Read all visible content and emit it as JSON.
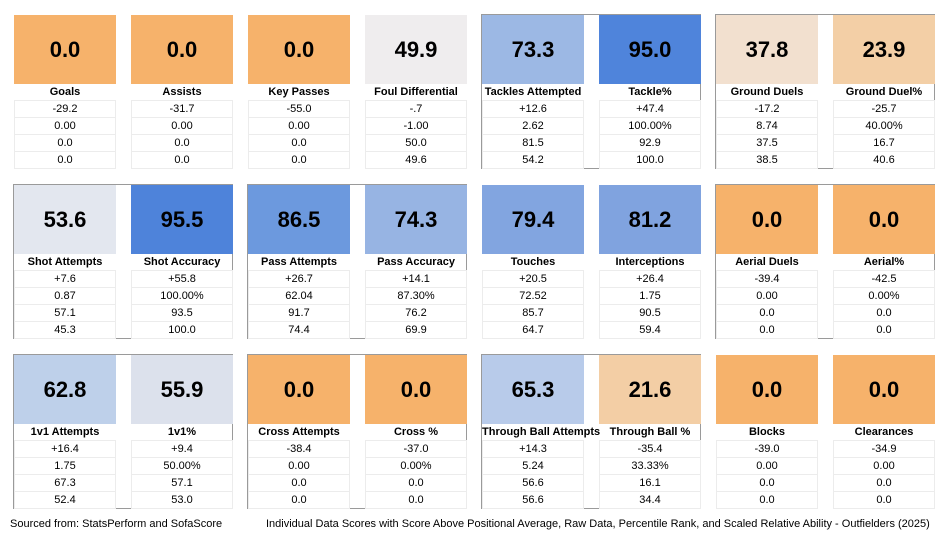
{
  "rows": [
    [
      {
        "label": "Goals",
        "score": "0.0",
        "color": "#F6B26B",
        "stats": [
          "-29.2",
          "0.00",
          "0.0",
          "0.0"
        ]
      },
      {
        "label": "Assists",
        "score": "0.0",
        "color": "#F6B26B",
        "stats": [
          "-31.7",
          "0.00",
          "0.0",
          "0.0"
        ]
      },
      {
        "label": "Key Passes",
        "score": "0.0",
        "color": "#F6B26B",
        "stats": [
          "-55.0",
          "0.00",
          "0.0",
          "0.0"
        ]
      },
      {
        "label": "Foul Differential",
        "score": "49.9",
        "color": "#EFEDEE",
        "stats": [
          "-.7",
          "-1.00",
          "50.0",
          "49.6"
        ]
      },
      {
        "label": "Tackles Attempted",
        "score": "73.3",
        "color": "#9CB8E4",
        "stats": [
          "+12.6",
          "2.62",
          "81.5",
          "54.2"
        ]
      },
      {
        "label": "Tackle%",
        "score": "95.0",
        "color": "#4F84DB",
        "stats": [
          "+47.4",
          "100.00%",
          "92.9",
          "100.0"
        ]
      },
      {
        "label": "Ground Duels",
        "score": "37.8",
        "color": "#F2E0CF",
        "stats": [
          "-17.2",
          "8.74",
          "37.5",
          "38.5"
        ]
      },
      {
        "label": "Ground Duel%",
        "score": "23.9",
        "color": "#F3CFA6",
        "stats": [
          "-25.7",
          "40.00%",
          "16.7",
          "40.6"
        ]
      }
    ],
    [
      {
        "label": "Shot Attempts",
        "score": "53.6",
        "color": "#E3E7EF",
        "stats": [
          "+7.6",
          "0.87",
          "57.1",
          "45.3"
        ]
      },
      {
        "label": "Shot Accuracy",
        "score": "95.5",
        "color": "#4E83DA",
        "stats": [
          "+55.8",
          "100.00%",
          "93.5",
          "100.0"
        ]
      },
      {
        "label": "Pass Attempts",
        "score": "86.5",
        "color": "#6C99DE",
        "stats": [
          "+26.7",
          "62.04",
          "91.7",
          "74.4"
        ]
      },
      {
        "label": "Pass Accuracy",
        "score": "74.3",
        "color": "#97B4E3",
        "stats": [
          "+14.1",
          "87.30%",
          "76.2",
          "69.9"
        ]
      },
      {
        "label": "Touches",
        "score": "79.4",
        "color": "#82A5E0",
        "stats": [
          "+20.5",
          "72.52",
          "85.7",
          "64.7"
        ]
      },
      {
        "label": "Interceptions",
        "score": "81.2",
        "color": "#80A3DF",
        "stats": [
          "+26.4",
          "1.75",
          "90.5",
          "59.4"
        ]
      },
      {
        "label": "Aerial Duels",
        "score": "0.0",
        "color": "#F6B26B",
        "stats": [
          "-39.4",
          "0.00",
          "0.0",
          "0.0"
        ]
      },
      {
        "label": "Aerial%",
        "score": "0.0",
        "color": "#F6B26B",
        "stats": [
          "-42.5",
          "0.00%",
          "0.0",
          "0.0"
        ]
      }
    ],
    [
      {
        "label": "1v1 Attempts",
        "score": "62.8",
        "color": "#BED0EA",
        "stats": [
          "+16.4",
          "1.75",
          "67.3",
          "52.4"
        ]
      },
      {
        "label": "1v1%",
        "score": "55.9",
        "color": "#DCE1EC",
        "stats": [
          "+9.4",
          "50.00%",
          "57.1",
          "53.0"
        ]
      },
      {
        "label": "Cross Attempts",
        "score": "0.0",
        "color": "#F6B26B",
        "stats": [
          "-38.4",
          "0.00",
          "0.0",
          "0.0"
        ]
      },
      {
        "label": "Cross %",
        "score": "0.0",
        "color": "#F6B26B",
        "stats": [
          "-37.0",
          "0.00%",
          "0.0",
          "0.0"
        ]
      },
      {
        "label": "Through Ball Attempts",
        "score": "65.3",
        "color": "#B8CBEA",
        "stats": [
          "+14.3",
          "5.24",
          "56.6",
          "56.6"
        ]
      },
      {
        "label": "Through Ball %",
        "score": "21.6",
        "color": "#F3CEA5",
        "stats": [
          "-35.4",
          "33.33%",
          "16.1",
          "34.4"
        ]
      },
      {
        "label": "Blocks",
        "score": "0.0",
        "color": "#F6B26B",
        "stats": [
          "-39.0",
          "0.00",
          "0.0",
          "0.0"
        ]
      },
      {
        "label": "Clearances",
        "score": "0.0",
        "color": "#F6B26B",
        "stats": [
          "-34.9",
          "0.00",
          "0.0",
          "0.0"
        ]
      }
    ]
  ],
  "footer": {
    "source": "Sourced from: StatsPerform and SofaScore",
    "caption": "Individual Data Scores with Score Above Positional Average, Raw Data, Percentile Rank, and Scaled Relative Ability - Outfielders (2025)"
  }
}
